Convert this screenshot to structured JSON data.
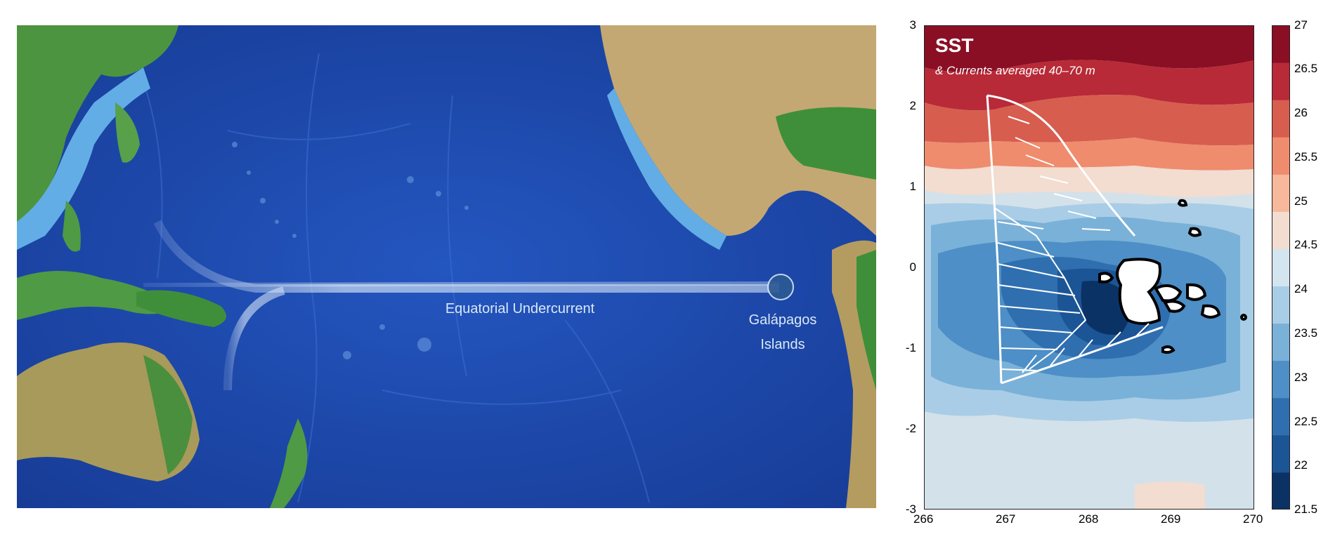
{
  "left_map": {
    "current_label": "Equatorial Undercurrent",
    "islands_label_line1": "Galápagos",
    "islands_label_line2": "Islands",
    "colors": {
      "deep_ocean": "#1a3f9e",
      "mid_ocean": "#2a5cc0",
      "shelf": "#5aa6e0",
      "land_green": "#3f8f3a",
      "land_tan": "#c9b07a",
      "current": "#cfe3f6"
    }
  },
  "right_map": {
    "title": "SST",
    "subtitle": "& Currents averaged 40–70 m",
    "x_ticks": [
      "266",
      "267",
      "268",
      "269",
      "270"
    ],
    "y_ticks": [
      "3",
      "2",
      "1",
      "0",
      "-1",
      "-2",
      "-3"
    ],
    "xlim": [
      266,
      270
    ],
    "ylim": [
      -3,
      3
    ]
  },
  "colorbar": {
    "ticks": [
      "27",
      "26.5",
      "26",
      "25.5",
      "25",
      "24.5",
      "24",
      "23.5",
      "23",
      "22.5",
      "22",
      "21.5"
    ],
    "range": [
      21.5,
      27
    ],
    "colors": [
      "#0b3264",
      "#1b5596",
      "#2f6fb0",
      "#4d8fc6",
      "#7ab1d8",
      "#a9cde6",
      "#d3e5ef",
      "#f3dcd0",
      "#f7b89c",
      "#ef8c6e",
      "#d75d4f",
      "#b82a37",
      "#8a0f25"
    ]
  }
}
